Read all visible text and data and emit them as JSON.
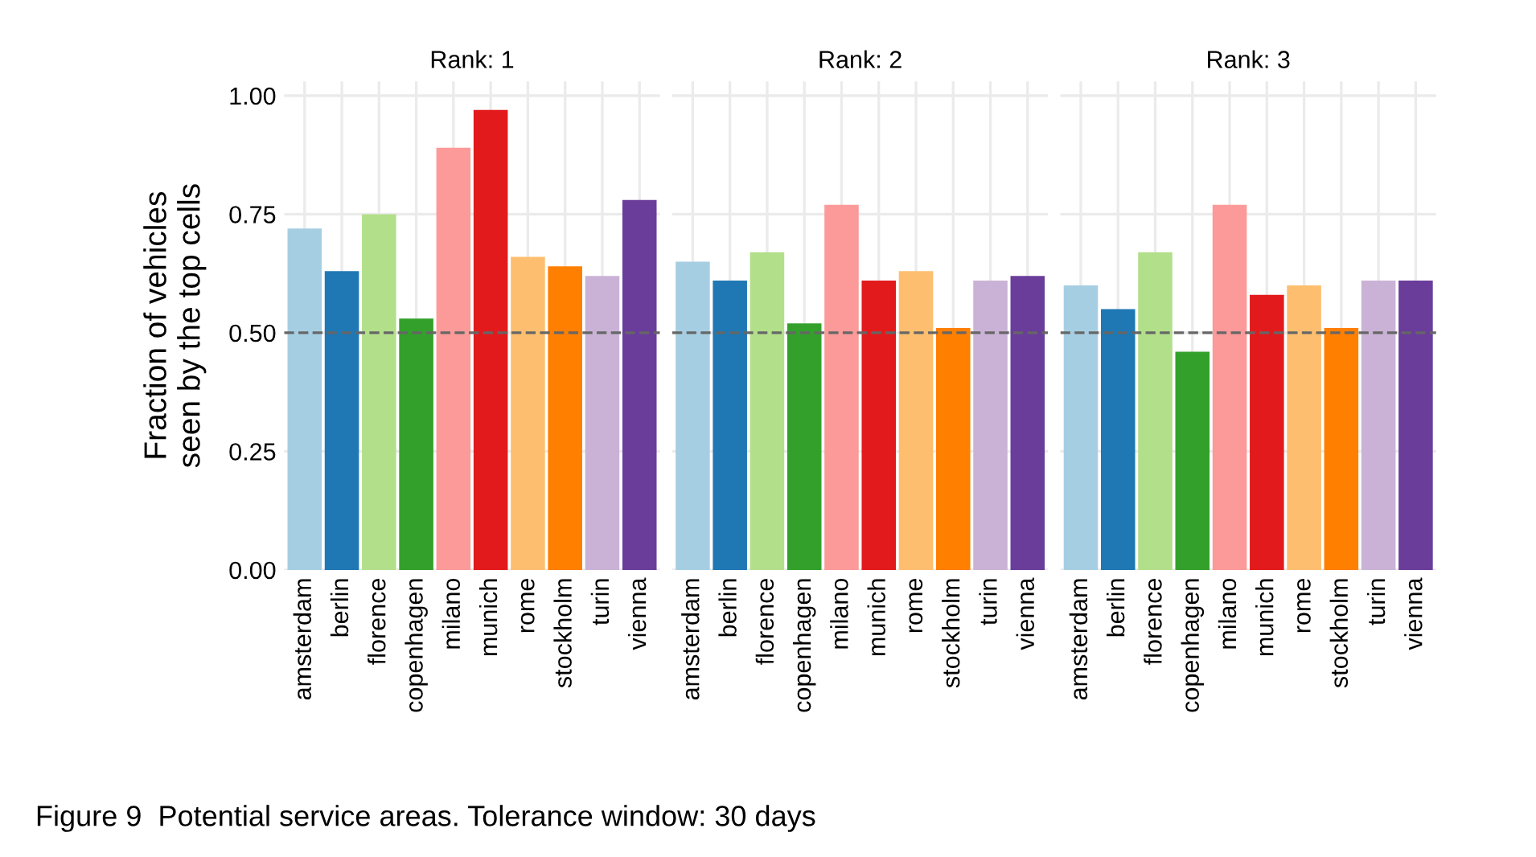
{
  "chart_data": [
    {
      "type": "bar",
      "title": "Rank: 1",
      "ylabel": "Fraction of vehicles\nseen by the top cells",
      "categories": [
        "amsterdam",
        "berlin",
        "florence",
        "copenhagen",
        "milano",
        "munich",
        "rome",
        "stockholm",
        "turin",
        "vienna"
      ],
      "values": [
        0.72,
        0.63,
        0.75,
        0.53,
        0.89,
        0.97,
        0.66,
        0.64,
        0.62,
        0.78
      ],
      "colors": [
        "#a6cee3",
        "#1f78b4",
        "#b2df8a",
        "#33a02c",
        "#fb9a99",
        "#e31a1c",
        "#fdbf6f",
        "#ff7f00",
        "#cab2d6",
        "#6a3d9a"
      ],
      "ylim": [
        0,
        1.03
      ],
      "yticks": [
        {
          "value": 0,
          "label": "0.00"
        },
        {
          "value": 0.25,
          "label": "0.25"
        },
        {
          "value": 0.5,
          "label": "0.50"
        },
        {
          "value": 0.75,
          "label": "0.75"
        },
        {
          "value": 1,
          "label": "1.00"
        }
      ],
      "grid": true,
      "ref_lines": [
        {
          "axis": "y",
          "value": 0.5,
          "color": "#666666",
          "line_style": "dashed"
        }
      ],
      "annotations": [
        "Figure 9  Potential service areas. Tolerance window: 30 days"
      ]
    },
    {
      "type": "bar",
      "title": "Rank: 2",
      "categories": [
        "amsterdam",
        "berlin",
        "florence",
        "copenhagen",
        "milano",
        "munich",
        "rome",
        "stockholm",
        "turin",
        "vienna"
      ],
      "values": [
        0.65,
        0.61,
        0.67,
        0.52,
        0.77,
        0.61,
        0.63,
        0.51,
        0.61,
        0.62
      ],
      "colors": [
        "#a6cee3",
        "#1f78b4",
        "#b2df8a",
        "#33a02c",
        "#fb9a99",
        "#e31a1c",
        "#fdbf6f",
        "#ff7f00",
        "#cab2d6",
        "#6a3d9a"
      ],
      "ylim": [
        0,
        1.03
      ],
      "tick_labels": "x",
      "grid": true,
      "ref_lines": [
        {
          "axis": "y",
          "value": 0.5,
          "color": "#666666",
          "line_style": "dashed"
        }
      ]
    },
    {
      "type": "bar",
      "title": "Rank: 3",
      "categories": [
        "amsterdam",
        "berlin",
        "florence",
        "copenhagen",
        "milano",
        "munich",
        "rome",
        "stockholm",
        "turin",
        "vienna"
      ],
      "values": [
        0.6,
        0.55,
        0.67,
        0.46,
        0.77,
        0.58,
        0.6,
        0.51,
        0.61,
        0.61
      ],
      "colors": [
        "#a6cee3",
        "#1f78b4",
        "#b2df8a",
        "#33a02c",
        "#fb9a99",
        "#e31a1c",
        "#fdbf6f",
        "#ff7f00",
        "#cab2d6",
        "#6a3d9a"
      ],
      "ylim": [
        0,
        1.03
      ],
      "tick_labels": "x",
      "grid": true,
      "ref_lines": [
        {
          "axis": "y",
          "value": 0.5,
          "color": "#666666",
          "line_style": "dashed"
        }
      ]
    }
  ]
}
